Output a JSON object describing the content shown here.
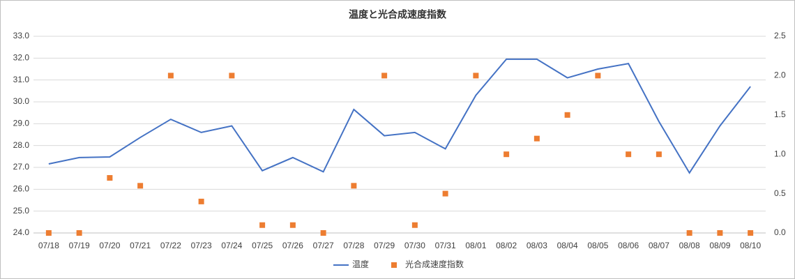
{
  "chart_data": {
    "type": "combo",
    "title": "温度と光合成速度指数",
    "categories": [
      "07/18",
      "07/19",
      "07/20",
      "07/21",
      "07/22",
      "07/23",
      "07/24",
      "07/25",
      "07/26",
      "07/27",
      "07/28",
      "07/29",
      "07/30",
      "07/31",
      "08/01",
      "08/02",
      "08/03",
      "08/04",
      "08/05",
      "08/06",
      "08/07",
      "08/08",
      "08/09",
      "08/10"
    ],
    "series": [
      {
        "name": "温度",
        "type": "line",
        "color": "#4472c4",
        "axis": "y",
        "values": [
          27.16,
          27.45,
          27.48,
          28.37,
          29.2,
          28.6,
          28.9,
          26.85,
          27.45,
          26.8,
          29.65,
          28.45,
          28.6,
          27.85,
          30.3,
          31.95,
          31.95,
          31.1,
          31.5,
          31.75,
          29.1,
          26.75,
          28.9,
          30.7
        ]
      },
      {
        "name": "光合成速度指数",
        "type": "scatter",
        "color": "#ed7d31",
        "axis": "y2",
        "values": [
          0,
          0,
          0.7,
          0.6,
          2.0,
          0.4,
          2.0,
          0.1,
          0.1,
          0,
          0.6,
          2.0,
          0.1,
          0.5,
          2.0,
          1.0,
          1.2,
          1.5,
          2.0,
          1.0,
          1.0,
          0,
          0,
          0
        ]
      }
    ],
    "ylim": [
      24,
      33
    ],
    "yticks": [
      {
        "value": 24,
        "label": "24.0"
      },
      {
        "value": 25,
        "label": "25.0"
      },
      {
        "value": 26,
        "label": "26.0"
      },
      {
        "value": 27,
        "label": "27.0"
      },
      {
        "value": 28,
        "label": "28.0"
      },
      {
        "value": 29,
        "label": "29.0"
      },
      {
        "value": 30,
        "label": "30.0"
      },
      {
        "value": 31,
        "label": "31.0"
      },
      {
        "value": 32,
        "label": "32.0"
      },
      {
        "value": 33,
        "label": "33.0"
      }
    ],
    "y2lim": [
      0,
      2.5
    ],
    "y2ticks": [
      {
        "value": 0,
        "label": "0.0"
      },
      {
        "value": 0.5,
        "label": "0.5"
      },
      {
        "value": 1,
        "label": "1.0"
      },
      {
        "value": 1.5,
        "label": "1.5"
      },
      {
        "value": 2,
        "label": "2.0"
      },
      {
        "value": 2.5,
        "label": "2.5"
      }
    ],
    "grid": true,
    "legend": "bottom"
  }
}
